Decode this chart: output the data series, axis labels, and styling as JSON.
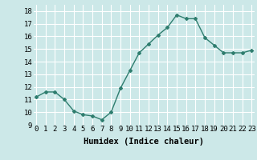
{
  "x": [
    0,
    1,
    2,
    3,
    4,
    5,
    6,
    7,
    8,
    9,
    10,
    11,
    12,
    13,
    14,
    15,
    16,
    17,
    18,
    19,
    20,
    21,
    22,
    23
  ],
  "y": [
    11.2,
    11.6,
    11.6,
    11.0,
    10.1,
    9.8,
    9.7,
    9.4,
    10.0,
    11.9,
    13.3,
    14.7,
    15.4,
    16.1,
    16.7,
    17.7,
    17.4,
    17.4,
    15.9,
    15.3,
    14.7,
    14.7,
    14.7,
    14.9
  ],
  "line_color": "#2e7d6e",
  "marker": "D",
  "marker_size": 2,
  "bg_color": "#cce8e8",
  "grid_color": "#ffffff",
  "xlabel": "Humidex (Indice chaleur)",
  "xlabel_fontsize": 7.5,
  "yticks": [
    9,
    10,
    11,
    12,
    13,
    14,
    15,
    16,
    17,
    18
  ],
  "xticks": [
    0,
    1,
    2,
    3,
    4,
    5,
    6,
    7,
    8,
    9,
    10,
    11,
    12,
    13,
    14,
    15,
    16,
    17,
    18,
    19,
    20,
    21,
    22,
    23
  ],
  "ylim": [
    9,
    18.5
  ],
  "xlim": [
    -0.3,
    23.3
  ],
  "tick_fontsize": 6.5,
  "linewidth": 1.0
}
